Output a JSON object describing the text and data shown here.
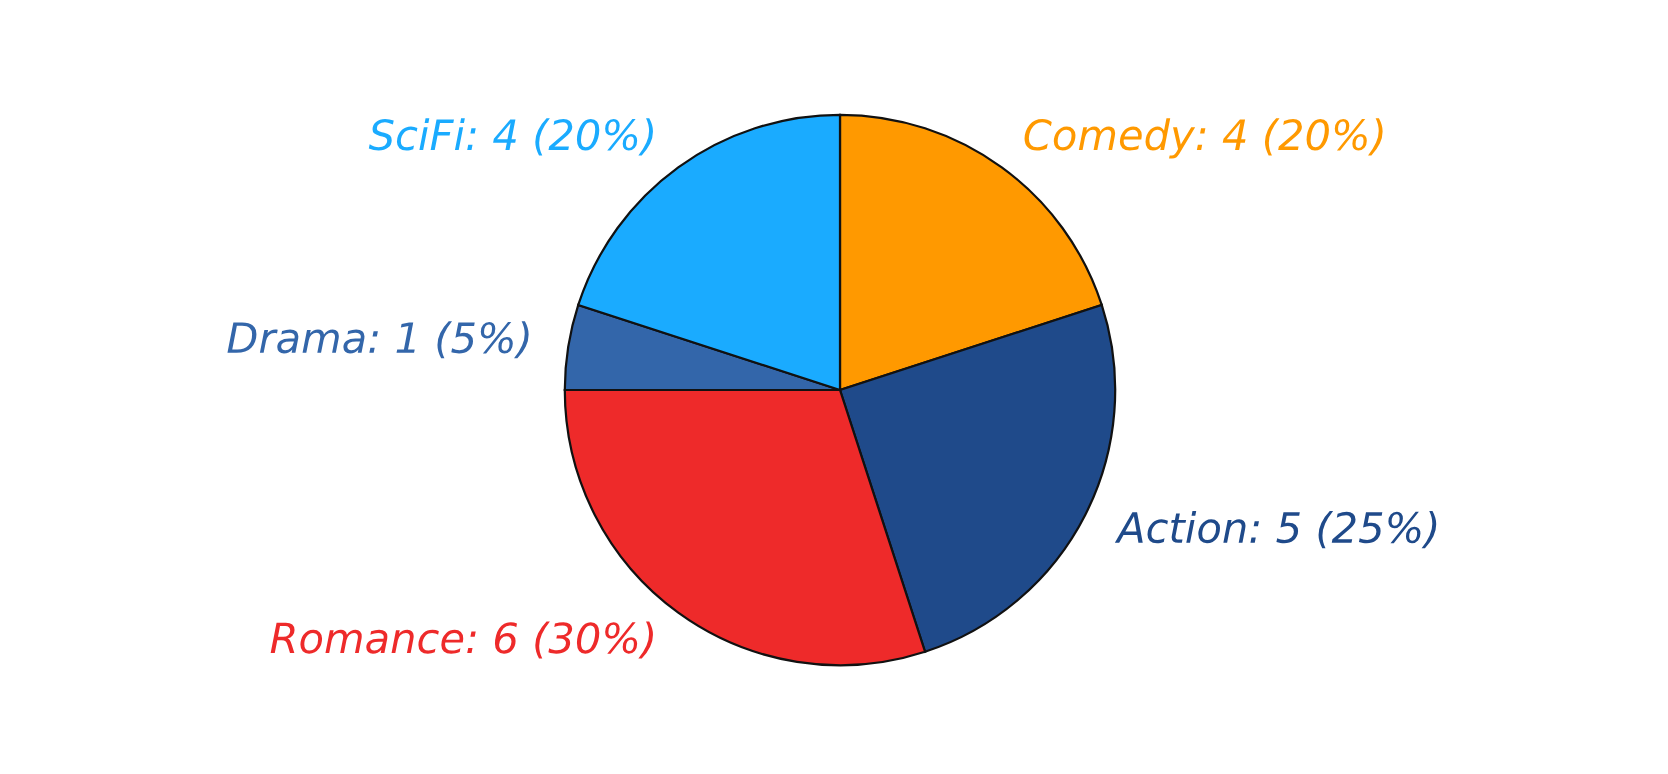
{
  "chart_data": {
    "type": "pie",
    "categories": [
      "Comedy",
      "Action",
      "Romance",
      "Drama",
      "SciFi"
    ],
    "values": [
      4,
      5,
      6,
      1,
      4
    ],
    "value_labels": [
      "4 (20%)",
      "5 (25%)",
      "6 (30%)",
      "1 (5%)",
      "4 (20%)"
    ],
    "colors": [
      "#ff9900",
      "#1f4a8a",
      "#ee2a2a",
      "#3366aa",
      "#1aabff"
    ]
  }
}
